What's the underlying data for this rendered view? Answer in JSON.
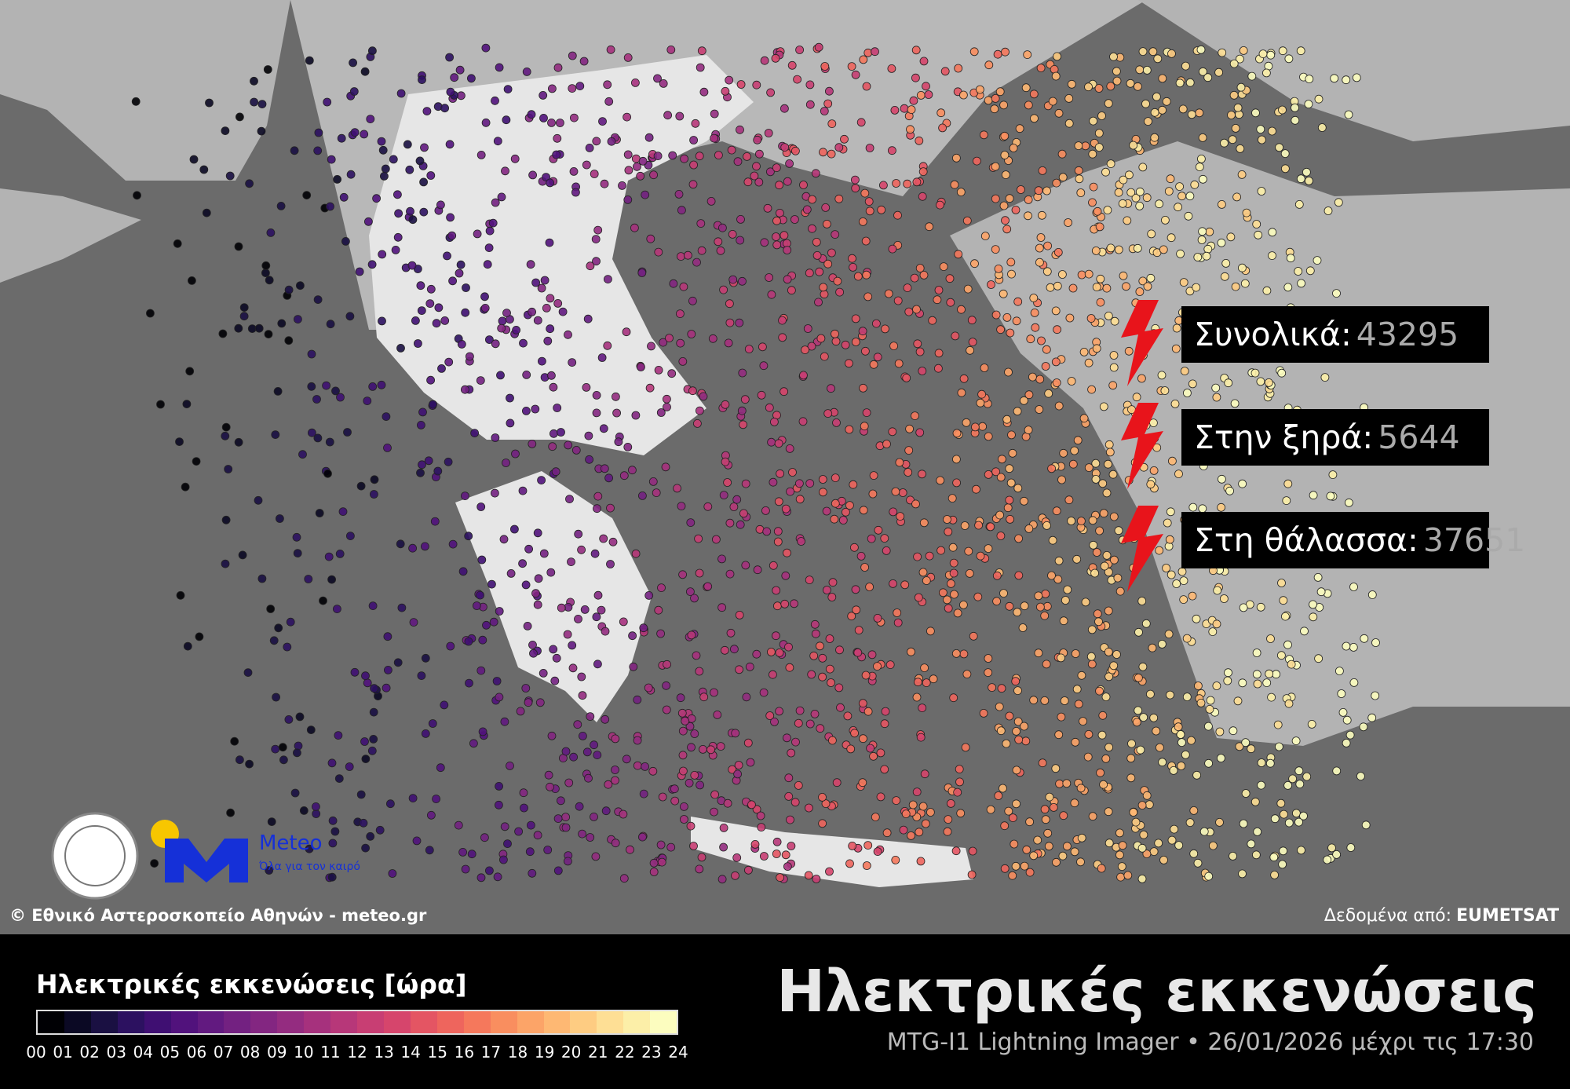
{
  "stats": [
    {
      "label": "Συνολικά:",
      "value": 43295
    },
    {
      "label": "Στην ξηρά:",
      "value": 5644
    },
    {
      "label": "Στη θάλασσα:",
      "value": 37651
    }
  ],
  "credit": "© Εθνικό Αστεροσκοπείο Αθηνών - meteo.gr",
  "data_source": {
    "label": "Δεδομένα από:",
    "value": "EUMETSAT"
  },
  "logo": {
    "name": "Meteo",
    "tagline": "Όλα για τον καιρό"
  },
  "legend": {
    "title": "Ηλεκτρικές εκκενώσεις [ώρα]",
    "ticks": [
      "00",
      "01",
      "02",
      "03",
      "04",
      "05",
      "06",
      "07",
      "08",
      "09",
      "10",
      "11",
      "12",
      "13",
      "14",
      "15",
      "16",
      "17",
      "18",
      "19",
      "20",
      "21",
      "22",
      "23",
      "24"
    ],
    "colors": [
      "#000004",
      "#0b0924",
      "#1a1042",
      "#2c1160",
      "#3f0f72",
      "#51127c",
      "#621a80",
      "#732181",
      "#832681",
      "#942c80",
      "#a6317d",
      "#b73779",
      "#c83e73",
      "#d6456c",
      "#e45563",
      "#ee655d",
      "#f5785c",
      "#f98e5f",
      "#fca468",
      "#feb873",
      "#fecc82",
      "#fedf95",
      "#fcefa8",
      "#fcfdbf"
    ]
  },
  "title": "Ηλεκτρικές εκκενώσεις",
  "subtitle": "MTG-I1 Lightning Imager • 26/01/2026 μέχρι τις 17:30"
}
